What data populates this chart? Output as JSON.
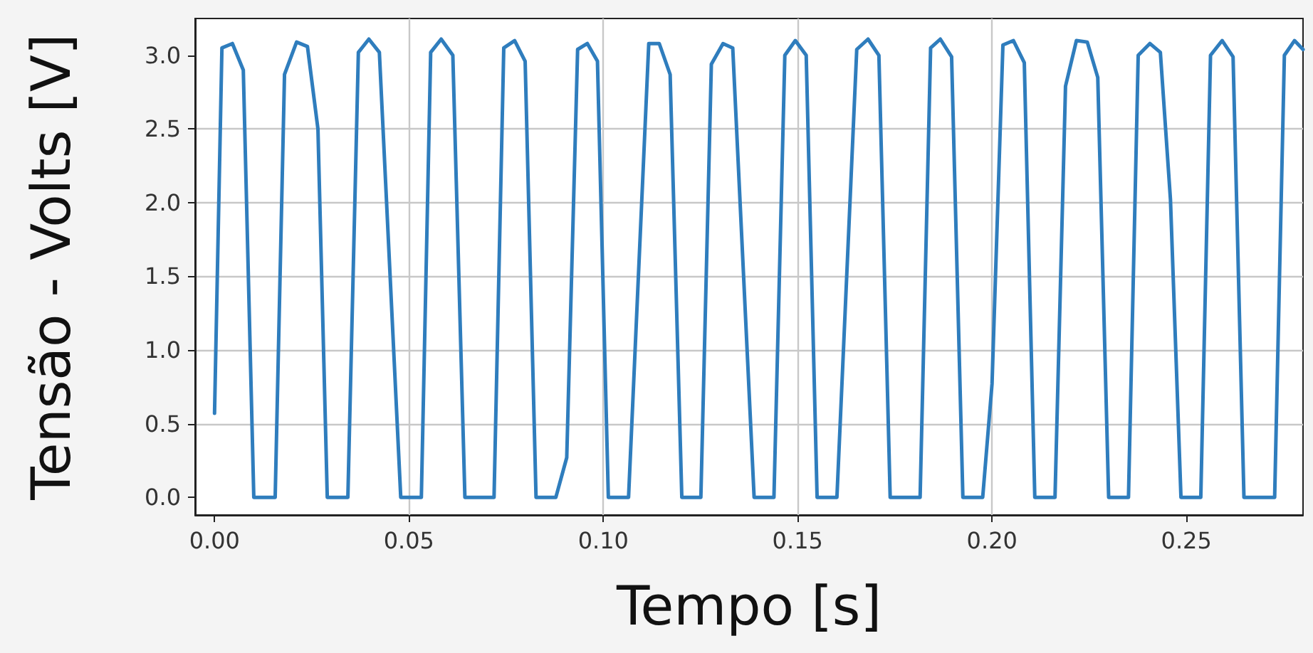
{
  "chart_data": {
    "type": "line",
    "xlabel": "Tempo [s]",
    "ylabel": "Tensão - Volts [V]",
    "xlim": [
      -0.005,
      0.28
    ],
    "ylim": [
      -0.12,
      3.25
    ],
    "xticks": [
      {
        "value": 0,
        "label": "0.00"
      },
      {
        "value": 0.05,
        "label": "0.05"
      },
      {
        "value": 0.1,
        "label": "0.10"
      },
      {
        "value": 0.15,
        "label": "0.15"
      },
      {
        "value": 0.2,
        "label": "0.20"
      },
      {
        "value": 0.25,
        "label": "0.25"
      }
    ],
    "yticks": [
      {
        "value": 0,
        "label": "0.0"
      },
      {
        "value": 0.5,
        "label": "0.5"
      },
      {
        "value": 1,
        "label": "1.0"
      },
      {
        "value": 1.5,
        "label": "1.5"
      },
      {
        "value": 2,
        "label": "2.0"
      },
      {
        "value": 2.5,
        "label": "2.5"
      },
      {
        "value": 3,
        "label": "3.0"
      }
    ],
    "grid": true,
    "marker": "none",
    "line_style": "solid",
    "x": [
      0,
      0.0019,
      0.0046,
      0.0074,
      0.0101,
      0.0156,
      0.018,
      0.0211,
      0.0239,
      0.0266,
      0.029,
      0.0343,
      0.037,
      0.0397,
      0.0424,
      0.0479,
      0.0532,
      0.0556,
      0.0583,
      0.0613,
      0.0644,
      0.0719,
      0.0744,
      0.0772,
      0.0799,
      0.0827,
      0.0878,
      0.0906,
      0.0934,
      0.0959,
      0.0985,
      0.1013,
      0.1065,
      0.1117,
      0.1144,
      0.1172,
      0.1202,
      0.1251,
      0.1278,
      0.1308,
      0.1333,
      0.1388,
      0.1439,
      0.1467,
      0.1494,
      0.1522,
      0.155,
      0.1601,
      0.1652,
      0.1681,
      0.1709,
      0.1738,
      0.1815,
      0.1842,
      0.1867,
      0.1896,
      0.1925,
      0.1976,
      0.2,
      0.2028,
      0.2055,
      0.2083,
      0.211,
      0.2162,
      0.2189,
      0.2217,
      0.2245,
      0.2272,
      0.23,
      0.2351,
      0.2376,
      0.2406,
      0.2433,
      0.2459,
      0.2486,
      0.2537,
      0.2562,
      0.2592,
      0.262,
      0.2648,
      0.2727,
      0.2752,
      0.2778,
      0.28
    ],
    "series": [
      {
        "color": "#2f7dbd",
        "values": [
          0.57,
          3.05,
          3.08,
          2.9,
          0,
          0,
          2.87,
          3.09,
          3.06,
          2.5,
          0,
          0,
          3.02,
          3.11,
          3.02,
          0,
          0,
          3.02,
          3.11,
          3.0,
          0,
          0,
          3.05,
          3.1,
          2.96,
          0,
          0,
          0.27,
          3.04,
          3.08,
          2.96,
          0,
          0,
          3.08,
          3.08,
          2.87,
          0,
          0,
          2.94,
          3.08,
          3.05,
          0,
          0,
          3.0,
          3.1,
          3.0,
          0,
          0,
          3.04,
          3.11,
          3.0,
          0,
          0,
          3.05,
          3.11,
          2.99,
          0,
          0,
          0.77,
          3.07,
          3.1,
          2.95,
          0,
          0,
          2.79,
          3.1,
          3.09,
          2.85,
          0,
          0,
          3.0,
          3.08,
          3.02,
          2.02,
          0,
          0,
          3.0,
          3.1,
          2.99,
          0,
          0,
          3.0,
          3.1,
          3.04
        ]
      }
    ]
  }
}
